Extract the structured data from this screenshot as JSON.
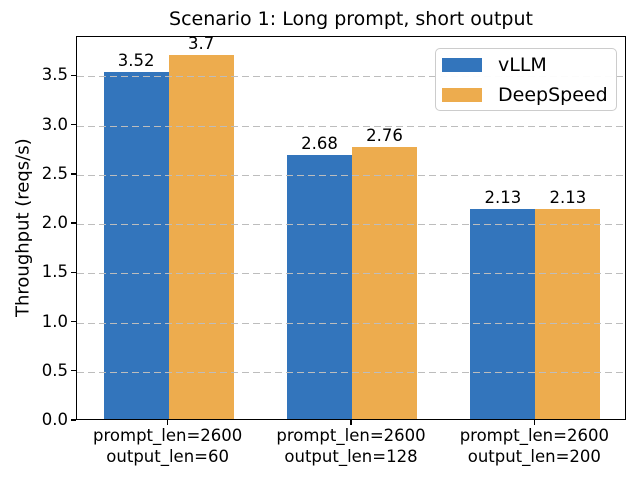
{
  "chart_data": {
    "type": "bar",
    "title": "Scenario 1: Long prompt, short output",
    "xlabel": "",
    "ylabel": "Throughput (reqs/s)",
    "categories": [
      "prompt_len=2600\noutput_len=60",
      "prompt_len=2600\noutput_len=128",
      "prompt_len=2600\noutput_len=200"
    ],
    "series": [
      {
        "name": "vLLM",
        "color": "#3375bc",
        "values": [
          3.52,
          2.68,
          2.13
        ]
      },
      {
        "name": "DeepSpeed",
        "color": "#edac4e",
        "values": [
          3.7,
          2.76,
          2.13
        ]
      }
    ],
    "bar_value_labels": [
      [
        "3.52",
        "2.68",
        "2.13"
      ],
      [
        "3.7",
        "2.76",
        "2.13"
      ]
    ],
    "ylim": [
      0,
      3.9
    ],
    "yticks": [
      0.0,
      0.5,
      1.0,
      1.5,
      2.0,
      2.5,
      3.0,
      3.5
    ],
    "grid": "horizontal-dashed",
    "grid_color": "#bdbdbd",
    "legend_position": "upper right",
    "legend_labels": [
      "vLLM",
      "DeepSpeed"
    ]
  }
}
